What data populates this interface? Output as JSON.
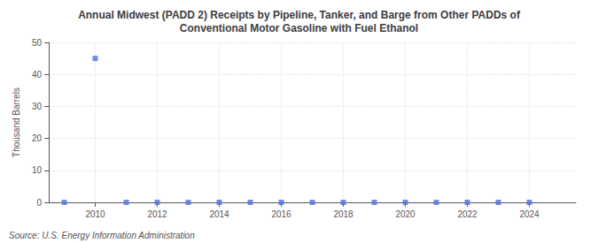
{
  "chart_data": {
    "type": "scatter",
    "title": "Annual Midwest (PADD 2) Receipts by Pipeline, Tanker, and Barge from Other PADDs of\nConventional Motor Gasoline with Fuel Ethanol",
    "ylabel": "Thousand Barrels",
    "annotations": [
      "Source: U.S. Energy Information Administration"
    ],
    "x": [
      2009,
      2010,
      2011,
      2012,
      2013,
      2014,
      2015,
      2016,
      2017,
      2018,
      2019,
      2020,
      2021,
      2022,
      2023,
      2024
    ],
    "values": [
      0,
      45,
      0,
      0,
      0,
      0,
      0,
      0,
      0,
      0,
      0,
      0,
      0,
      0,
      0,
      0
    ],
    "xlim": [
      2008.5,
      2025.5
    ],
    "xticks": [
      2010,
      2012,
      2014,
      2016,
      2018,
      2020,
      2022,
      2024
    ],
    "ylim": [
      0,
      50
    ],
    "yticks": [
      0,
      10,
      20,
      30,
      40,
      50
    ],
    "grid": true,
    "marker": "square"
  }
}
